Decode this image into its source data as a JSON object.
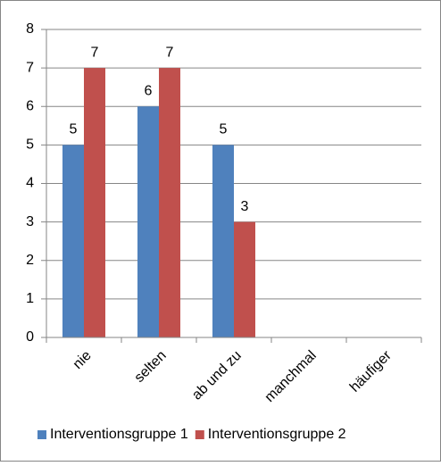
{
  "chart_data": {
    "type": "bar",
    "categories": [
      "nie",
      "selten",
      "ab und zu",
      "manchmal",
      "häufiger"
    ],
    "series": [
      {
        "name": "Interventionsgruppe 1",
        "color": "#4f81bd",
        "values": [
          5,
          6,
          5,
          null,
          null
        ]
      },
      {
        "name": "Interventionsgruppe 2",
        "color": "#c0504d",
        "values": [
          7,
          7,
          3,
          null,
          null
        ]
      }
    ],
    "ylim": [
      0,
      8
    ],
    "yticks": [
      0,
      1,
      2,
      3,
      4,
      5,
      6,
      7,
      8
    ],
    "grid": true,
    "legend": "bottom"
  }
}
